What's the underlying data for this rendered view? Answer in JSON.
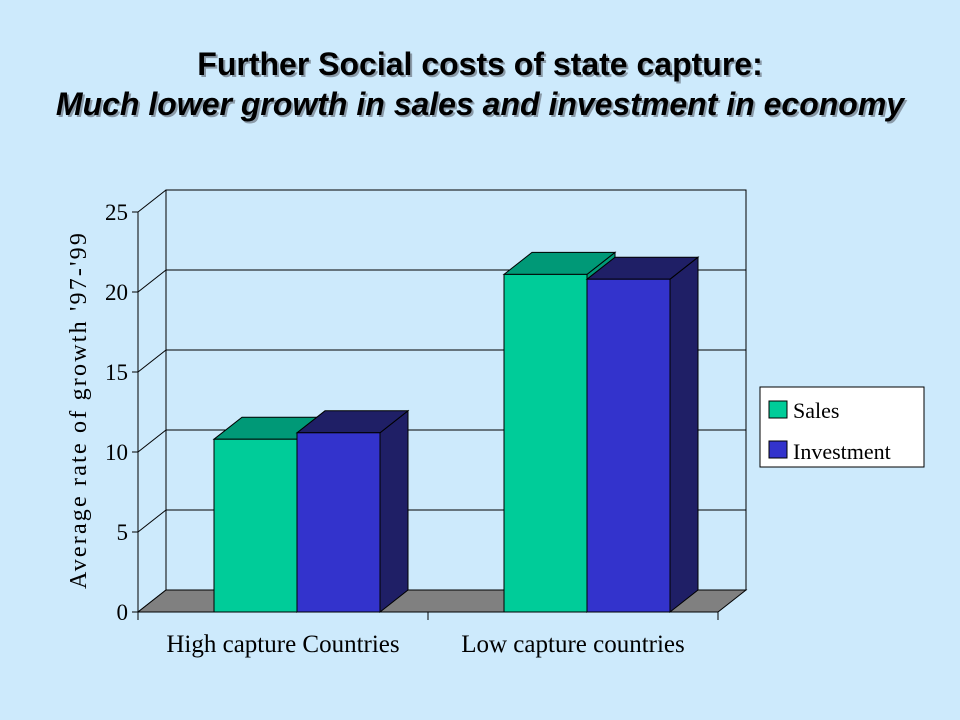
{
  "slide": {
    "title": "Further Social costs of state capture:",
    "subtitle": "Much lower growth in sales and investment in economy"
  },
  "colors": {
    "background": "#cdeafc",
    "sales": "#00cc99",
    "sales_top": "#009977",
    "investment": "#3333cc",
    "investment_side": "#1f1f66",
    "floor": "#808080"
  },
  "chart_data": {
    "type": "bar",
    "categories": [
      "High capture Countries",
      "Low capture countries"
    ],
    "series": [
      {
        "name": "Sales",
        "values": [
          10.8,
          21.1
        ]
      },
      {
        "name": "Investment",
        "values": [
          11.2,
          20.8
        ]
      }
    ],
    "ylabel": "Average rate of  growth '97-'99",
    "ylim": [
      0,
      25
    ],
    "yticks": [
      "0",
      "5",
      "10",
      "15",
      "20",
      "25"
    ],
    "grid": true,
    "legend_position": "right",
    "three_d": true
  }
}
